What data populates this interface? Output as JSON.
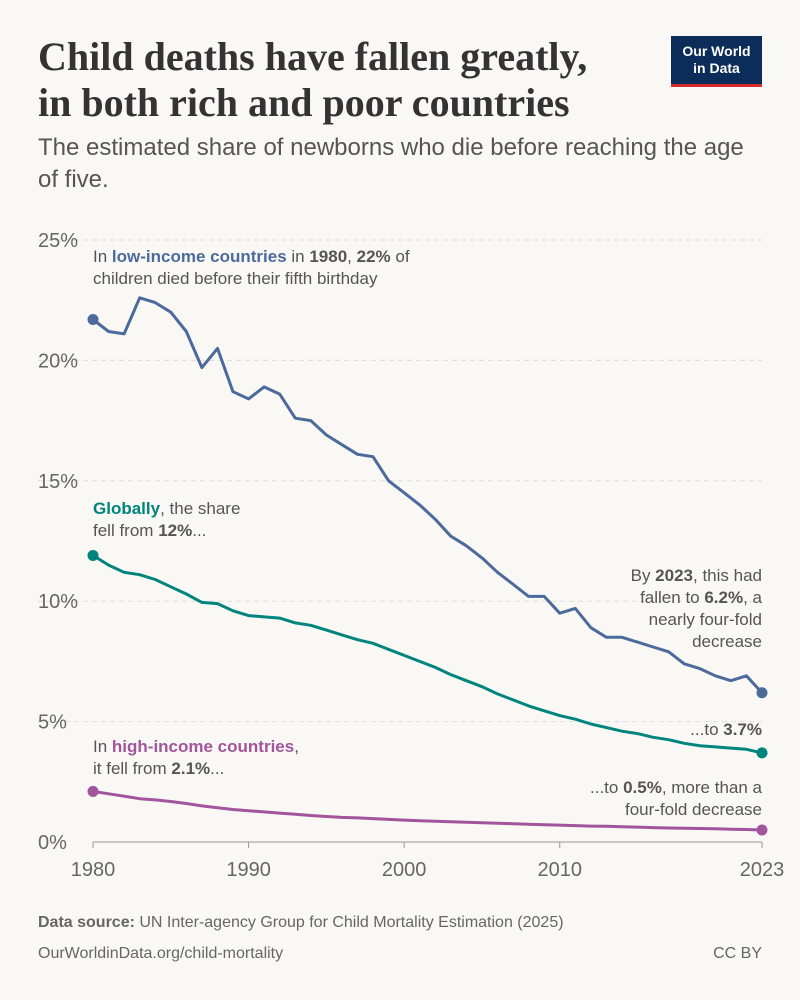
{
  "header": {
    "title_line1": "Child deaths have fallen greatly,",
    "title_line2": "in both rich and poor countries",
    "subtitle": "The estimated share of newborns who die before reaching the age of five.",
    "logo_line1": "Our World",
    "logo_line2": "in Data"
  },
  "footer": {
    "source_label": "Data source:",
    "source_text": "UN Inter-agency Group for Child Mortality Estimation (2025)",
    "url": "OurWorldinData.org/child-mortality",
    "license": "CC BY"
  },
  "colors": {
    "low_income": "#4c6a9c",
    "global": "#00847e",
    "high_income": "#a2559c",
    "grid": "#dddddd",
    "axis": "#666666",
    "text": "#555555"
  },
  "chart_data": {
    "type": "line",
    "title": "Child deaths have fallen greatly, in both rich and poor countries",
    "xlabel": "",
    "ylabel": "",
    "xlim": [
      1980,
      2023
    ],
    "ylim": [
      0,
      25
    ],
    "yticks": [
      0,
      5,
      10,
      15,
      20,
      25
    ],
    "ytick_labels": [
      "0%",
      "5%",
      "10%",
      "15%",
      "20%",
      "25%"
    ],
    "xticks": [
      1980,
      1990,
      2000,
      2010,
      2023
    ],
    "xtick_labels": [
      "1980",
      "1990",
      "2000",
      "2010",
      "2023"
    ],
    "grid": true,
    "x": [
      1980,
      1981,
      1982,
      1983,
      1984,
      1985,
      1986,
      1987,
      1988,
      1989,
      1990,
      1991,
      1992,
      1993,
      1994,
      1995,
      1996,
      1997,
      1998,
      1999,
      2000,
      2001,
      2002,
      2003,
      2004,
      2005,
      2006,
      2007,
      2008,
      2009,
      2010,
      2011,
      2012,
      2013,
      2014,
      2015,
      2016,
      2017,
      2018,
      2019,
      2020,
      2021,
      2022,
      2023
    ],
    "series": [
      {
        "name": "Low-income countries",
        "key": "low_income",
        "values": [
          21.7,
          21.2,
          21.1,
          22.6,
          22.4,
          22.0,
          21.2,
          19.7,
          20.5,
          18.7,
          18.4,
          18.9,
          18.6,
          17.6,
          17.5,
          16.9,
          16.5,
          16.1,
          16.0,
          15.0,
          14.5,
          14.0,
          13.4,
          12.7,
          12.3,
          11.8,
          11.2,
          10.7,
          10.2,
          10.2,
          9.5,
          9.7,
          8.9,
          8.5,
          8.5,
          8.3,
          8.1,
          7.9,
          7.4,
          7.2,
          6.9,
          6.7,
          6.9,
          6.2
        ]
      },
      {
        "name": "World",
        "key": "global",
        "values": [
          11.9,
          11.5,
          11.2,
          11.1,
          10.9,
          10.6,
          10.3,
          9.95,
          9.9,
          9.6,
          9.4,
          9.35,
          9.3,
          9.1,
          9.0,
          8.8,
          8.6,
          8.4,
          8.25,
          8.0,
          7.75,
          7.5,
          7.25,
          6.95,
          6.7,
          6.45,
          6.15,
          5.9,
          5.65,
          5.45,
          5.25,
          5.1,
          4.9,
          4.75,
          4.6,
          4.5,
          4.35,
          4.25,
          4.1,
          4.0,
          3.95,
          3.9,
          3.85,
          3.7
        ]
      },
      {
        "name": "High-income countries",
        "key": "high_income",
        "values": [
          2.1,
          2.0,
          1.9,
          1.8,
          1.75,
          1.68,
          1.6,
          1.5,
          1.42,
          1.35,
          1.3,
          1.25,
          1.2,
          1.15,
          1.1,
          1.06,
          1.02,
          1.0,
          0.97,
          0.94,
          0.91,
          0.88,
          0.86,
          0.84,
          0.82,
          0.8,
          0.78,
          0.76,
          0.74,
          0.72,
          0.7,
          0.68,
          0.66,
          0.65,
          0.63,
          0.62,
          0.6,
          0.58,
          0.57,
          0.56,
          0.55,
          0.53,
          0.52,
          0.5
        ]
      }
    ],
    "annotations": {
      "low_start": {
        "line1": [
          [
            "In ",
            false,
            "text"
          ],
          [
            "low-income countries",
            true,
            "low_income"
          ],
          [
            " in ",
            false,
            "text"
          ],
          [
            "1980",
            true,
            "text_bold"
          ],
          [
            ", ",
            false,
            "text"
          ],
          [
            "22%",
            true,
            "text_bold"
          ],
          [
            " of",
            false,
            "text"
          ]
        ],
        "line2": [
          [
            "children died before their fifth birthday",
            false,
            "text"
          ]
        ]
      },
      "low_end": {
        "line1": [
          [
            "By ",
            false,
            "text"
          ],
          [
            "2023",
            true,
            "text_bold"
          ],
          [
            ", this had",
            false,
            "text"
          ]
        ],
        "line2": [
          [
            "fallen to ",
            false,
            "text"
          ],
          [
            "6.2%",
            true,
            "text_bold"
          ],
          [
            ", a",
            false,
            "text"
          ]
        ],
        "line3": [
          [
            "nearly four-fold",
            false,
            "text"
          ]
        ],
        "line4": [
          [
            "decrease",
            false,
            "text"
          ]
        ]
      },
      "global_start": {
        "line1": [
          [
            "Globally",
            true,
            "global"
          ],
          [
            ", the share",
            false,
            "text"
          ]
        ],
        "line2": [
          [
            "fell from ",
            false,
            "text"
          ],
          [
            "12%",
            true,
            "text_bold"
          ],
          [
            "...",
            false,
            "text"
          ]
        ]
      },
      "global_end": {
        "line1": [
          [
            "...to ",
            false,
            "text"
          ],
          [
            "3.7%",
            true,
            "text_bold"
          ]
        ]
      },
      "high_start": {
        "line1": [
          [
            "In ",
            false,
            "text"
          ],
          [
            "high-income countries",
            true,
            "high_income"
          ],
          [
            ",",
            false,
            "text"
          ]
        ],
        "line2": [
          [
            "it fell from ",
            false,
            "text"
          ],
          [
            "2.1%",
            true,
            "text_bold"
          ],
          [
            "...",
            false,
            "text"
          ]
        ]
      },
      "high_end": {
        "line1": [
          [
            "...to ",
            false,
            "text"
          ],
          [
            "0.5%",
            true,
            "text_bold"
          ],
          [
            ", more than a",
            false,
            "text"
          ]
        ],
        "line2": [
          [
            "four-fold decrease",
            false,
            "text"
          ]
        ]
      }
    }
  }
}
